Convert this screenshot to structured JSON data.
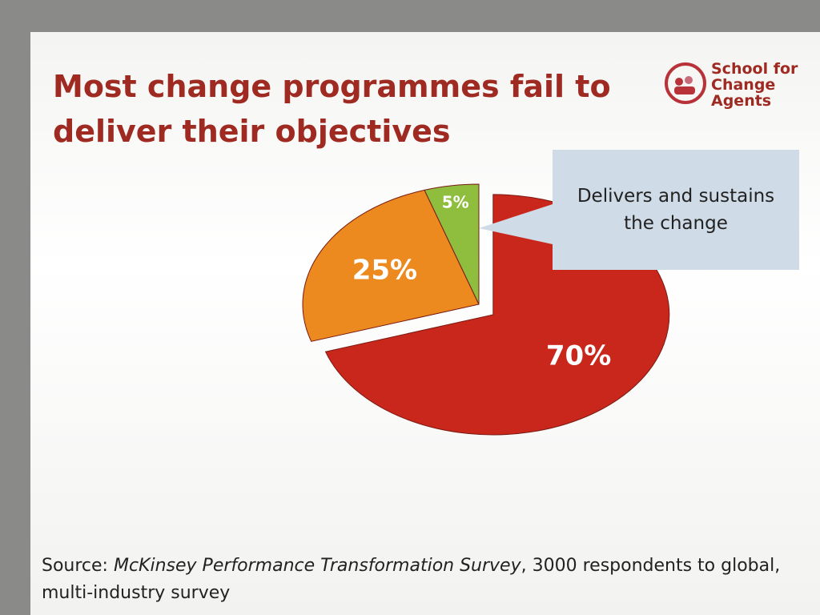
{
  "chart_data": {
    "type": "pie",
    "title": "Most change programmes fail to deliver their objectives",
    "values": [
      70,
      25,
      5
    ],
    "value_labels": [
      "70%",
      "25%",
      "5%"
    ],
    "colors": [
      "#c9271c",
      "#ec8a1f",
      "#8fbd3e"
    ],
    "annotation": "Delivers and sustains the change",
    "logo": [
      "School for",
      "Change",
      "Agents"
    ],
    "source": {
      "prefix": "Source:",
      "title": "McKinsey Performance Transformation Survey",
      "rest": ", 3000 respondents to global, multi-industry survey"
    }
  }
}
